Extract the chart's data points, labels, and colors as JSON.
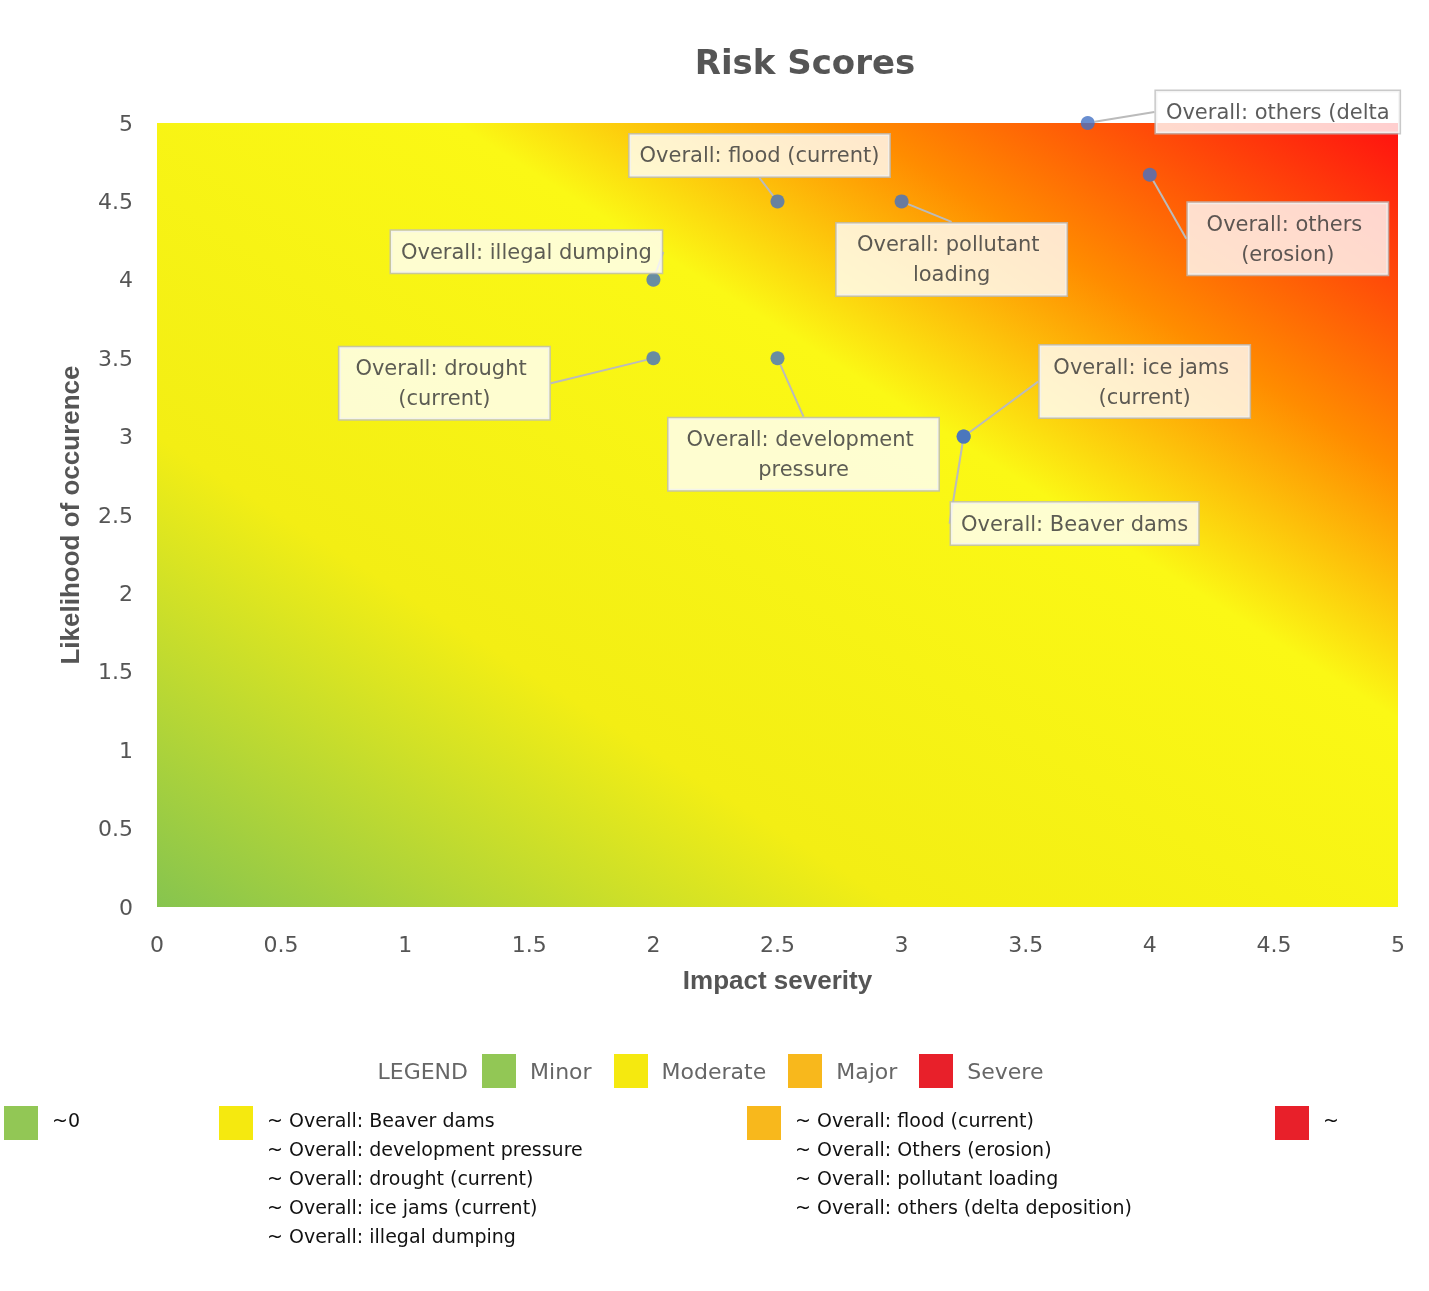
{
  "chart_data": {
    "type": "scatter",
    "title": "Risk Scores",
    "xlabel": "Impact severity",
    "ylabel": "Likelihood of occurence",
    "x": [
      3.75,
      2.5,
      3,
      4,
      2,
      2,
      2.5,
      3.25,
      3.25
    ],
    "series": [
      {
        "color": "#4472c4",
        "values": [
          5,
          4.5,
          4.5,
          4.67,
          4,
          3.5,
          3.5,
          3,
          3
        ],
        "value_labels": [
          "Overall: others (delta",
          "Overall: flood (current)",
          "Overall: pollutant loading",
          "Overall: others (erosion)",
          "Overall: illegal dumping",
          "Overall: drought (current)",
          "Overall: development pressure",
          "Overall: ice jams (current)",
          "Overall: Beaver dams"
        ]
      }
    ],
    "marker": "circle",
    "xlim": [
      0,
      5
    ],
    "ylim": [
      0,
      5
    ],
    "xticks": [
      0,
      0.5,
      1,
      1.5,
      2,
      2.5,
      3,
      3.5,
      4,
      4.5,
      5
    ],
    "yticks": [
      0,
      0.5,
      1,
      1.5,
      2,
      2.5,
      3,
      3.5,
      4,
      4.5,
      5
    ],
    "annotations": [
      "LEGEND",
      "Minor",
      "Moderate",
      "Major",
      "Severe",
      "~0",
      "~ Overall: Beaver dams\n~ Overall: development pressure\n~ Overall: drought (current)\n~ Overall: ice jams (current)\n~ Overall: illegal dumping",
      "~ Overall: flood (current)\n~ Overall: Others (erosion)\n~ Overall: pollutant loading\n~ Overall: others (delta deposition)",
      "~"
    ]
  }
}
